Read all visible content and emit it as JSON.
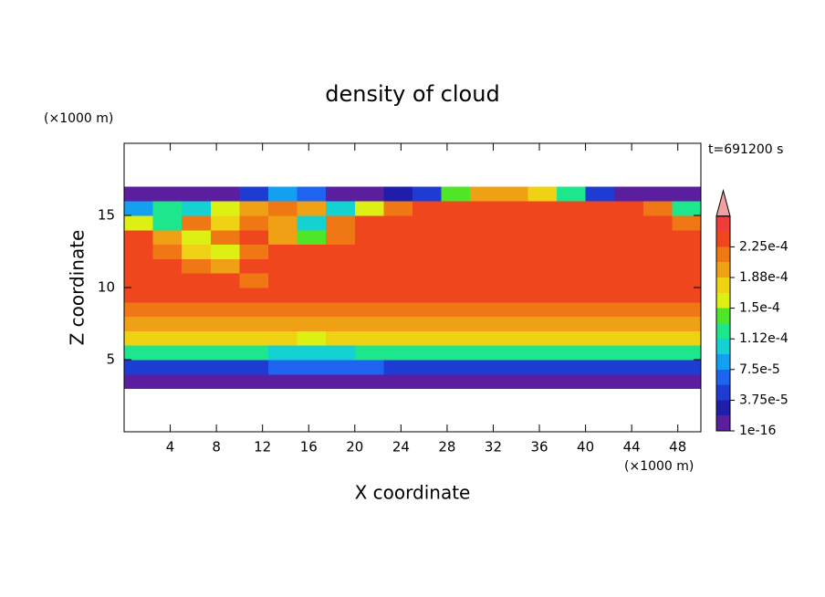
{
  "chart_data": {
    "type": "contour",
    "title": "density of cloud",
    "xlabel": "X coordinate",
    "ylabel": "Z coordinate",
    "xunit": "(×1000 m)",
    "yunit": "(×1000 m)",
    "annotation": "t=691200 s",
    "xlim": [
      0,
      50
    ],
    "ylim": [
      0,
      20
    ],
    "xticks": [
      4,
      8,
      12,
      16,
      20,
      24,
      28,
      32,
      36,
      40,
      44,
      48
    ],
    "yticks": [
      5,
      10,
      15
    ],
    "x": [
      1.25,
      3.75,
      6.25,
      8.75,
      11.25,
      13.75,
      16.25,
      18.75,
      21.25,
      23.75,
      26.25,
      28.75,
      31.25,
      33.75,
      36.25,
      38.75,
      41.25,
      43.75,
      46.25,
      48.75
    ],
    "z": [
      0.5,
      1.5,
      2.5,
      3.5,
      4.5,
      5.5,
      6.5,
      7.5,
      8.5,
      9.5,
      10.5,
      11.5,
      12.5,
      13.5,
      14.5,
      15.5,
      16.5,
      17.5,
      18.5,
      19.5
    ],
    "values": [
      [
        null,
        null,
        null,
        null,
        null,
        null,
        null,
        null,
        null,
        null,
        null,
        null,
        null,
        null,
        null,
        null,
        null,
        null,
        null,
        null
      ],
      [
        null,
        null,
        null,
        null,
        null,
        null,
        null,
        null,
        null,
        null,
        null,
        null,
        null,
        null,
        null,
        null,
        null,
        null,
        null,
        null
      ],
      [
        null,
        null,
        null,
        null,
        null,
        null,
        null,
        null,
        null,
        null,
        null,
        null,
        null,
        null,
        null,
        null,
        null,
        null,
        null,
        null
      ],
      [
        1e-05,
        1e-05,
        1e-05,
        1e-05,
        1e-05,
        1e-05,
        1e-05,
        1e-05,
        1e-05,
        1e-05,
        1e-05,
        1e-05,
        1e-05,
        1e-05,
        1e-05,
        1e-05,
        1e-05,
        1e-05,
        1e-05,
        1e-05
      ],
      [
        5e-05,
        5e-05,
        5e-05,
        5e-05,
        5e-05,
        6e-05,
        7e-05,
        7e-05,
        6e-05,
        5e-05,
        5e-05,
        5e-05,
        5e-05,
        5e-05,
        5e-05,
        5e-05,
        5e-05,
        5e-05,
        5e-05,
        5e-05
      ],
      [
        0.00012,
        0.00012,
        0.00012,
        0.00012,
        0.00012,
        0.00011,
        0.0001,
        0.00011,
        0.00012,
        0.00012,
        0.00012,
        0.00012,
        0.00012,
        0.00012,
        0.00012,
        0.00012,
        0.00012,
        0.00012,
        0.00012,
        0.00012
      ],
      [
        0.00017,
        0.00017,
        0.00017,
        0.00017,
        0.00017,
        0.00017,
        0.00016,
        0.00017,
        0.00017,
        0.00017,
        0.00017,
        0.00017,
        0.00017,
        0.00017,
        0.00017,
        0.00017,
        0.00017,
        0.00017,
        0.00017,
        0.00017
      ],
      [
        0.0002,
        0.0002,
        0.0002,
        0.0002,
        0.0002,
        0.0002,
        0.00019,
        0.0002,
        0.0002,
        0.0002,
        0.0002,
        0.0002,
        0.0002,
        0.0002,
        0.0002,
        0.0002,
        0.0002,
        0.0002,
        0.0002,
        0.0002
      ],
      [
        0.00022,
        0.00022,
        0.00022,
        0.00022,
        0.00022,
        0.00022,
        0.00022,
        0.00022,
        0.00022,
        0.00022,
        0.00022,
        0.00022,
        0.00022,
        0.00022,
        0.00022,
        0.00022,
        0.00022,
        0.00022,
        0.00022,
        0.00022
      ],
      [
        0.000235,
        0.000235,
        0.000235,
        0.000235,
        0.000235,
        0.000235,
        0.000235,
        0.000235,
        0.000235,
        0.000235,
        0.000235,
        0.000235,
        0.000235,
        0.000235,
        0.000235,
        0.000235,
        0.000235,
        0.000235,
        0.000235,
        0.000235
      ],
      [
        0.000235,
        0.000235,
        0.000235,
        0.00023,
        0.00022,
        0.000235,
        0.000235,
        0.000235,
        0.000235,
        0.000235,
        0.000235,
        0.000235,
        0.000235,
        0.000235,
        0.000235,
        0.000235,
        0.000235,
        0.000235,
        0.000235,
        0.000235
      ],
      [
        0.000235,
        0.000235,
        0.00021,
        0.00019,
        0.00023,
        0.000235,
        0.000235,
        0.000235,
        0.000235,
        0.000235,
        0.000235,
        0.000235,
        0.000235,
        0.000235,
        0.000235,
        0.000235,
        0.000235,
        0.000235,
        0.000235,
        0.000235
      ],
      [
        0.000235,
        0.00022,
        0.00018,
        0.00016,
        0.00021,
        0.000235,
        0.000235,
        0.000235,
        0.000235,
        0.000235,
        0.000235,
        0.000235,
        0.000235,
        0.000235,
        0.000235,
        0.000235,
        0.000235,
        0.000235,
        0.000235,
        0.000235
      ],
      [
        0.00023,
        0.00019,
        0.00016,
        0.00022,
        0.00023,
        0.0002,
        0.00014,
        0.00022,
        0.000235,
        0.000235,
        0.000235,
        0.000235,
        0.000235,
        0.000235,
        0.000235,
        0.000235,
        0.000235,
        0.000235,
        0.000235,
        0.00023
      ],
      [
        0.00015,
        0.00012,
        0.00021,
        0.00018,
        0.00022,
        0.0002,
        0.0001,
        0.00021,
        0.00023,
        0.000235,
        0.000235,
        0.000235,
        0.000235,
        0.000235,
        0.000235,
        0.000235,
        0.000235,
        0.000235,
        0.00023,
        0.00022
      ],
      [
        8e-05,
        0.00013,
        0.0001,
        0.00016,
        0.0002,
        0.00022,
        0.00019,
        0.0001,
        0.00015,
        0.00021,
        0.00023,
        0.00023,
        0.00023,
        0.00023,
        0.00023,
        0.00023,
        0.00023,
        0.00023,
        0.00022,
        0.00012
      ],
      [
        1e-05,
        1e-05,
        1e-05,
        1e-05,
        5e-05,
        8e-05,
        6e-05,
        1e-05,
        1e-05,
        2e-05,
        4e-05,
        0.00014,
        0.00019,
        0.0002,
        0.00018,
        0.00012,
        5e-05,
        1e-05,
        1e-05,
        1e-05
      ],
      [
        null,
        null,
        null,
        null,
        null,
        null,
        null,
        null,
        null,
        null,
        null,
        null,
        null,
        null,
        null,
        null,
        null,
        null,
        null,
        null
      ],
      [
        null,
        null,
        null,
        null,
        null,
        null,
        null,
        null,
        null,
        null,
        null,
        null,
        null,
        null,
        null,
        null,
        null,
        null,
        null,
        null
      ],
      [
        null,
        null,
        null,
        null,
        null,
        null,
        null,
        null,
        null,
        null,
        null,
        null,
        null,
        null,
        null,
        null,
        null,
        null,
        null,
        null
      ]
    ],
    "levels": [
      1e-16,
      1.875e-05,
      3.75e-05,
      5.625e-05,
      7.5e-05,
      9.375e-05,
      0.0001125,
      0.00013125,
      0.00015,
      0.00016875,
      0.0001875,
      0.00020625,
      0.000225,
      0.00024375,
      0.0002625
    ],
    "colors": [
      "#5a1e9e",
      "#1e1eaa",
      "#1e3cd2",
      "#1e64f0",
      "#14a0f0",
      "#14d2d2",
      "#1ee68c",
      "#50e628",
      "#dcf014",
      "#f0d214",
      "#f0a014",
      "#f07814",
      "#f0461e",
      "#f03c3c"
    ],
    "extend_color": "#f0a0a0",
    "cticks": [
      {
        "value": 1e-16,
        "label": "1e-16"
      },
      {
        "value": 3.75e-05,
        "label": "3.75e-5"
      },
      {
        "value": 7.5e-05,
        "label": "7.5e-5"
      },
      {
        "value": 0.0001125,
        "label": "1.12e-4"
      },
      {
        "value": 0.00015,
        "label": "1.5e-4"
      },
      {
        "value": 0.0001875,
        "label": "1.88e-4"
      },
      {
        "value": 0.000225,
        "label": "2.25e-4"
      }
    ]
  }
}
